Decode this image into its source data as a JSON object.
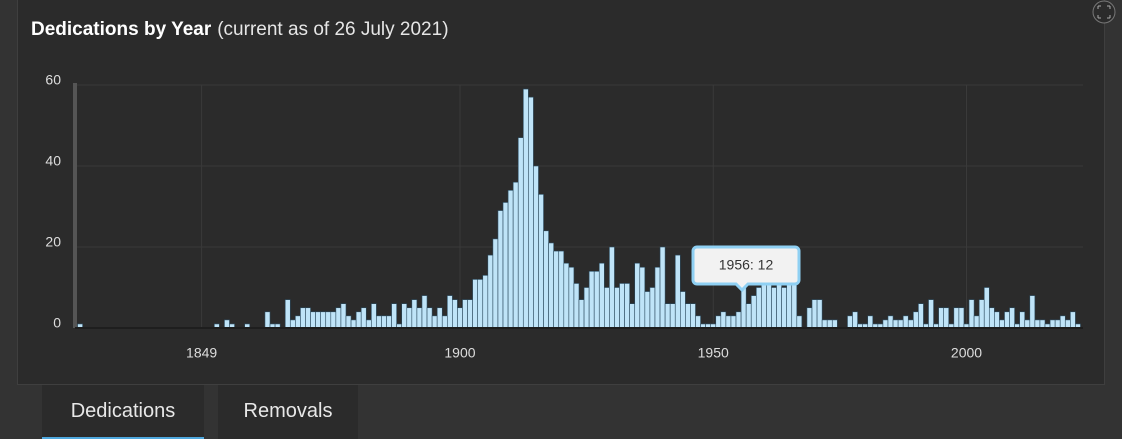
{
  "chart_data": {
    "type": "bar",
    "title": "Dedications by Year",
    "subtitle": "(current as of 26 July 2021)",
    "x": [
      1825,
      1852,
      1854,
      1855,
      1858,
      1862,
      1863,
      1864,
      1866,
      1867,
      1868,
      1869,
      1870,
      1871,
      1872,
      1873,
      1874,
      1875,
      1876,
      1877,
      1878,
      1879,
      1880,
      1881,
      1882,
      1883,
      1884,
      1885,
      1886,
      1887,
      1888,
      1889,
      1890,
      1891,
      1892,
      1893,
      1894,
      1895,
      1896,
      1897,
      1898,
      1899,
      1900,
      1901,
      1902,
      1903,
      1904,
      1905,
      1906,
      1907,
      1908,
      1909,
      1910,
      1911,
      1912,
      1913,
      1914,
      1915,
      1916,
      1917,
      1918,
      1919,
      1920,
      1921,
      1922,
      1923,
      1924,
      1925,
      1926,
      1927,
      1928,
      1929,
      1930,
      1931,
      1932,
      1933,
      1934,
      1935,
      1936,
      1937,
      1938,
      1939,
      1940,
      1941,
      1942,
      1943,
      1944,
      1945,
      1946,
      1947,
      1948,
      1949,
      1950,
      1951,
      1952,
      1953,
      1954,
      1955,
      1956,
      1957,
      1958,
      1959,
      1960,
      1961,
      1962,
      1963,
      1964,
      1965,
      1966,
      1967,
      1969,
      1970,
      1971,
      1972,
      1973,
      1974,
      1977,
      1978,
      1979,
      1980,
      1981,
      1982,
      1983,
      1984,
      1985,
      1986,
      1987,
      1988,
      1989,
      1990,
      1991,
      1992,
      1993,
      1994,
      1995,
      1996,
      1997,
      1998,
      1999,
      2000,
      2001,
      2002,
      2003,
      2004,
      2005,
      2006,
      2007,
      2008,
      2009,
      2010,
      2011,
      2012,
      2013,
      2014,
      2015,
      2016,
      2017,
      2018,
      2019,
      2020,
      2021,
      2022
    ],
    "values": [
      1,
      1,
      2,
      1,
      1,
      4,
      1,
      1,
      7,
      2,
      3,
      5,
      5,
      4,
      4,
      4,
      4,
      4,
      5,
      6,
      3,
      2,
      4,
      5,
      2,
      6,
      3,
      3,
      3,
      6,
      1,
      6,
      5,
      7,
      5,
      8,
      5,
      3,
      5,
      3,
      8,
      7,
      5,
      7,
      7,
      12,
      12,
      13,
      18,
      22,
      29,
      31,
      34,
      36,
      47,
      59,
      57,
      40,
      33,
      24,
      21,
      19,
      19,
      16,
      15,
      11,
      7,
      10,
      14,
      14,
      16,
      10,
      20,
      10,
      11,
      11,
      6,
      16,
      15,
      9,
      10,
      15,
      20,
      6,
      6,
      18,
      9,
      6,
      6,
      3,
      1,
      1,
      1,
      3,
      4,
      3,
      3,
      4,
      12,
      6,
      8,
      10,
      12,
      13,
      10,
      12,
      10,
      11,
      12,
      3,
      5,
      7,
      7,
      2,
      2,
      2,
      3,
      4,
      1,
      1,
      3,
      1,
      1,
      2,
      3,
      2,
      2,
      3,
      2,
      4,
      6,
      1,
      7,
      1,
      5,
      5,
      1,
      5,
      5,
      1,
      7,
      3,
      7,
      10,
      5,
      4,
      2,
      4,
      5,
      1,
      4,
      2,
      8,
      2,
      2,
      1,
      2,
      2,
      3,
      2,
      4,
      1
    ],
    "color": "#bfe4f8",
    "xlim": [
      1824,
      2023
    ],
    "xticks": [
      1849,
      1900,
      1950,
      2000
    ],
    "ylim": [
      0,
      60
    ],
    "yticks": [
      0,
      20,
      40,
      60
    ],
    "grid": true,
    "tooltip": "1956: 12"
  },
  "tabs": [
    "Dedications",
    "Removals"
  ]
}
